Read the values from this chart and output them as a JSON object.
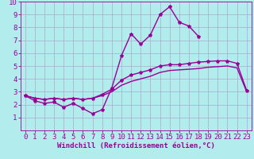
{
  "xlabel": "Windchill (Refroidissement éolien,°C)",
  "bg_color": "#b2ecec",
  "grid_color": "#aaaacc",
  "line_color": "#990099",
  "xlim": [
    -0.5,
    23.5
  ],
  "ylim": [
    0,
    10
  ],
  "xticks": [
    0,
    1,
    2,
    3,
    4,
    5,
    6,
    7,
    8,
    9,
    10,
    11,
    12,
    13,
    14,
    15,
    16,
    17,
    18,
    19,
    20,
    21,
    22,
    23
  ],
  "yticks": [
    1,
    2,
    3,
    4,
    5,
    6,
    7,
    8,
    9,
    10
  ],
  "line1_x": [
    0,
    1,
    2,
    3,
    4,
    5,
    6,
    7,
    8,
    9,
    10,
    11,
    12,
    13,
    14,
    15,
    16,
    17,
    18
  ],
  "line1_y": [
    2.7,
    2.3,
    2.1,
    2.2,
    1.8,
    2.1,
    1.7,
    1.3,
    1.6,
    3.3,
    5.8,
    7.5,
    6.7,
    7.4,
    9.0,
    9.6,
    8.4,
    8.1,
    7.3
  ],
  "line2_x": [
    0,
    1,
    2,
    3,
    4,
    5,
    6,
    7,
    8,
    9,
    10,
    11,
    12,
    13,
    14,
    15,
    16,
    17,
    18,
    19,
    20,
    21,
    22,
    23
  ],
  "line2_y": [
    2.7,
    2.5,
    2.4,
    2.5,
    2.4,
    2.5,
    2.4,
    2.5,
    2.8,
    3.2,
    3.9,
    4.3,
    4.5,
    4.7,
    5.0,
    5.1,
    5.1,
    5.2,
    5.3,
    5.35,
    5.4,
    5.4,
    5.2,
    3.1
  ],
  "line3_x": [
    0,
    1,
    2,
    3,
    4,
    5,
    6,
    7,
    8,
    9,
    10,
    11,
    12,
    13,
    14,
    15,
    16,
    17,
    18,
    19,
    20,
    21,
    22,
    23
  ],
  "line3_y": [
    2.7,
    2.5,
    2.4,
    2.5,
    2.4,
    2.5,
    2.4,
    2.5,
    2.7,
    3.0,
    3.5,
    3.8,
    4.0,
    4.2,
    4.5,
    4.65,
    4.7,
    4.75,
    4.8,
    4.9,
    4.95,
    5.0,
    4.85,
    3.0
  ],
  "marker": "*",
  "marker_size": 3,
  "line_width": 1.0,
  "font_size": 6.5
}
